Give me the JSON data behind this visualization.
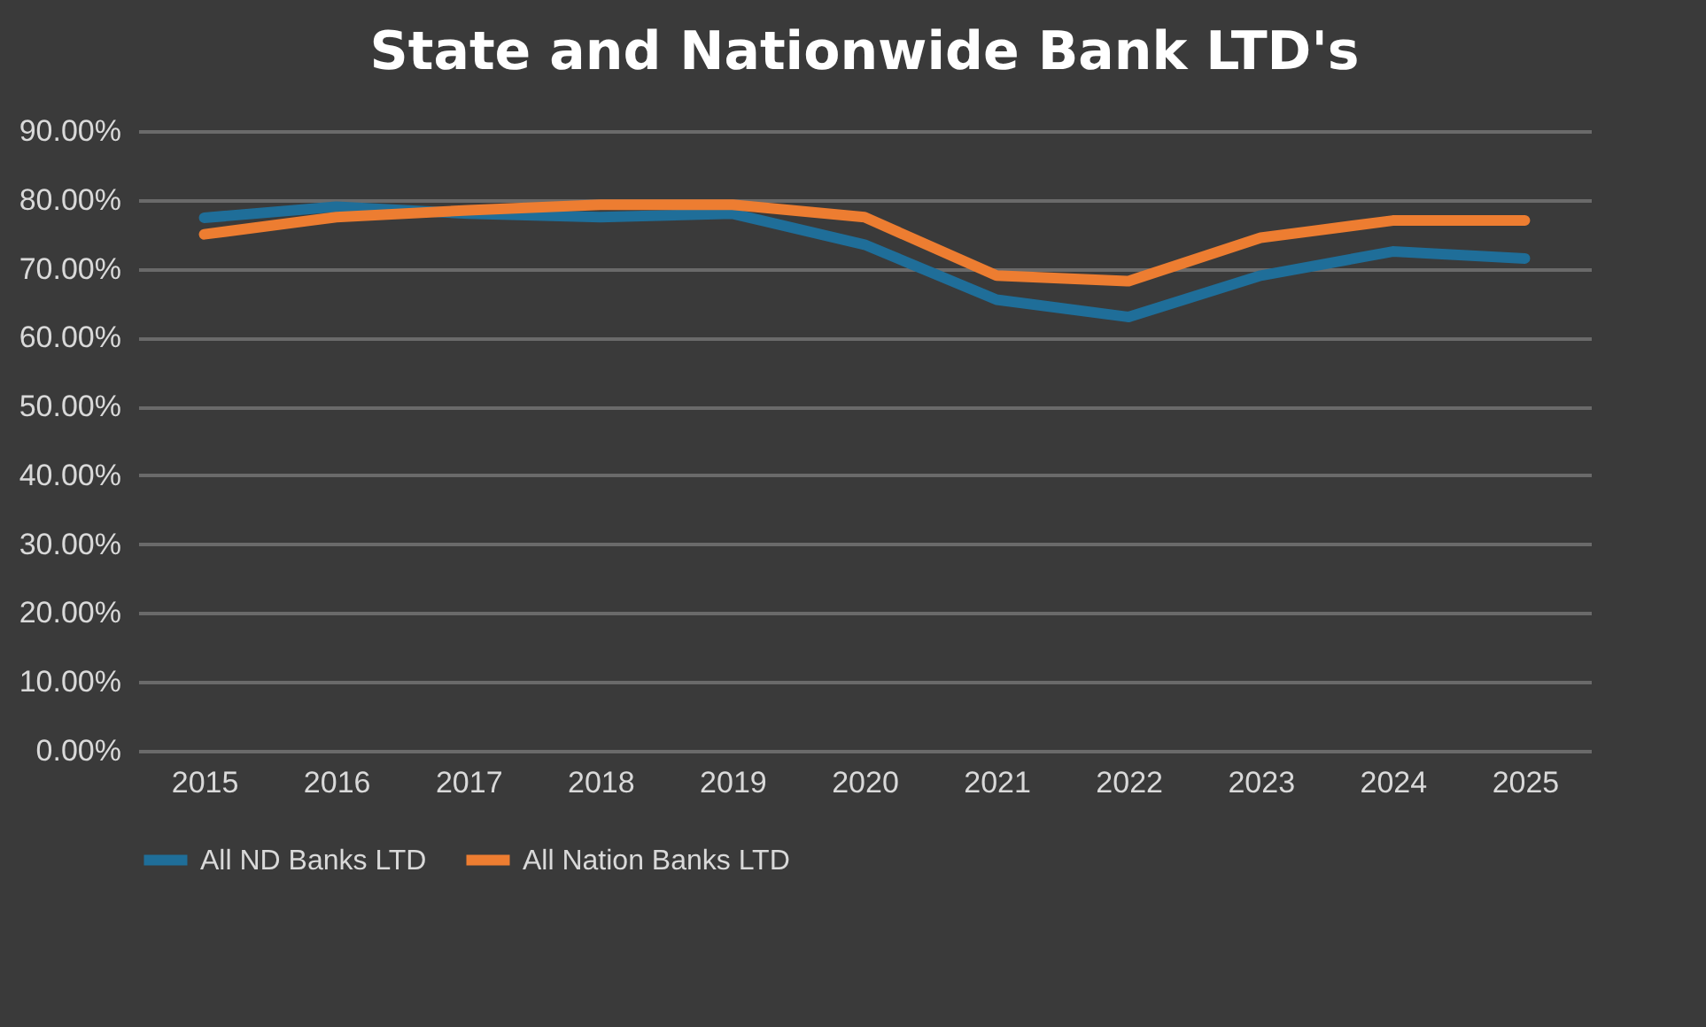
{
  "chart_data": {
    "type": "line",
    "title": "State and Nationwide Bank LTD's",
    "categories": [
      "2015",
      "2016",
      "2017",
      "2018",
      "2019",
      "2020",
      "2021",
      "2022",
      "2023",
      "2024",
      "2025"
    ],
    "series": [
      {
        "name": "All ND Banks LTD",
        "color": "#1f6e99",
        "values": [
          77.4,
          79,
          78,
          77.5,
          78,
          73.5,
          65.5,
          63,
          69,
          72.5,
          71.5
        ]
      },
      {
        "name": "All Nation Banks LTD",
        "color": "#ed7d31",
        "values": [
          75,
          77.5,
          78.5,
          79.3,
          79.3,
          77.5,
          69,
          68.2,
          74.5,
          77,
          77
        ]
      }
    ],
    "ylim": [
      0,
      90
    ],
    "yticks": [
      {
        "value": 0,
        "label": "0.00%"
      },
      {
        "value": 10,
        "label": "10.00%"
      },
      {
        "value": 20,
        "label": "20.00%"
      },
      {
        "value": 30,
        "label": "30.00%"
      },
      {
        "value": 40,
        "label": "40.00%"
      },
      {
        "value": 50,
        "label": "50.00%"
      },
      {
        "value": 60,
        "label": "60.00%"
      },
      {
        "value": 70,
        "label": "70.00%"
      },
      {
        "value": 80,
        "label": "80.00%"
      },
      {
        "value": 90,
        "label": "90.00%"
      }
    ],
    "grid": "y",
    "legend": "bottom",
    "marker": "none",
    "line_style": "solid"
  }
}
